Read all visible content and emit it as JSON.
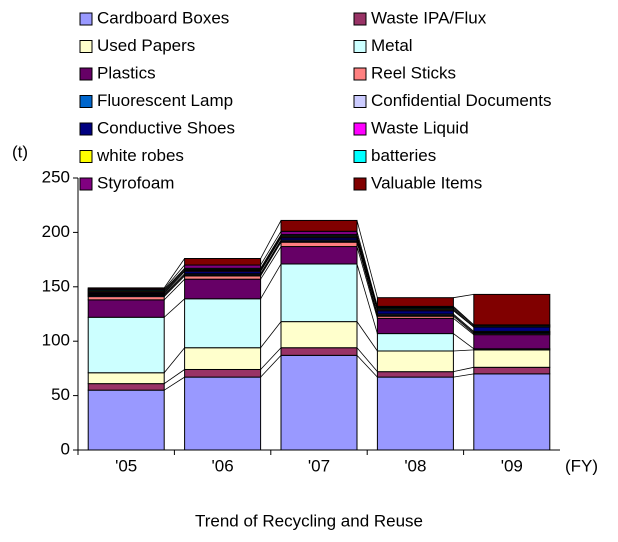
{
  "chart_data": {
    "type": "bar",
    "stacked": true,
    "title": "Trend of Recycling and Reuse",
    "y_unit": "(t)",
    "x_unit": "(FY)",
    "categories": [
      "'05",
      "'06",
      "'07",
      "'08",
      "'09"
    ],
    "ylim": [
      0,
      250
    ],
    "yticks": [
      0,
      50,
      100,
      150,
      200,
      250
    ],
    "grid": false,
    "series_lines": true,
    "series": [
      {
        "name": "Cardboard Boxes",
        "color": "#9999ff",
        "values": [
          55,
          67,
          87,
          67,
          70
        ]
      },
      {
        "name": "Waste IPA/Flux",
        "color": "#993366",
        "values": [
          6,
          7,
          7,
          5,
          6
        ]
      },
      {
        "name": "Used Papers",
        "color": "#ffffcc",
        "values": [
          10,
          20,
          24,
          19,
          16
        ]
      },
      {
        "name": "Metal",
        "color": "#ccffff",
        "values": [
          51,
          45,
          53,
          16,
          1
        ]
      },
      {
        "name": "Plastics",
        "color": "#660066",
        "values": [
          16,
          18,
          16,
          14,
          13
        ]
      },
      {
        "name": "Reel Sticks",
        "color": "#ff8080",
        "values": [
          3,
          3,
          4,
          2,
          1
        ]
      },
      {
        "name": "Fluorescent Lamp",
        "color": "#0066cc",
        "values": [
          1,
          1,
          1,
          1,
          1
        ]
      },
      {
        "name": "Confidential Documents",
        "color": "#ccccff",
        "values": [
          1,
          1,
          1,
          1,
          1
        ]
      },
      {
        "name": "Conductive Shoes",
        "color": "#000080",
        "values": [
          1,
          2,
          2,
          3,
          4
        ]
      },
      {
        "name": "Waste Liquid",
        "color": "#ff00ff",
        "values": [
          1,
          1,
          1,
          1,
          0
        ]
      },
      {
        "name": "white robes",
        "color": "#ffff00",
        "values": [
          1,
          1,
          1,
          1,
          1
        ]
      },
      {
        "name": "batteries",
        "color": "#00ffff",
        "values": [
          1,
          1,
          1,
          1,
          1
        ]
      },
      {
        "name": "Styrofoam",
        "color": "#800080",
        "values": [
          1,
          3,
          3,
          1,
          0
        ]
      },
      {
        "name": "Valuable Items",
        "color": "#800000",
        "values": [
          1,
          6,
          10,
          8,
          28
        ]
      }
    ]
  }
}
